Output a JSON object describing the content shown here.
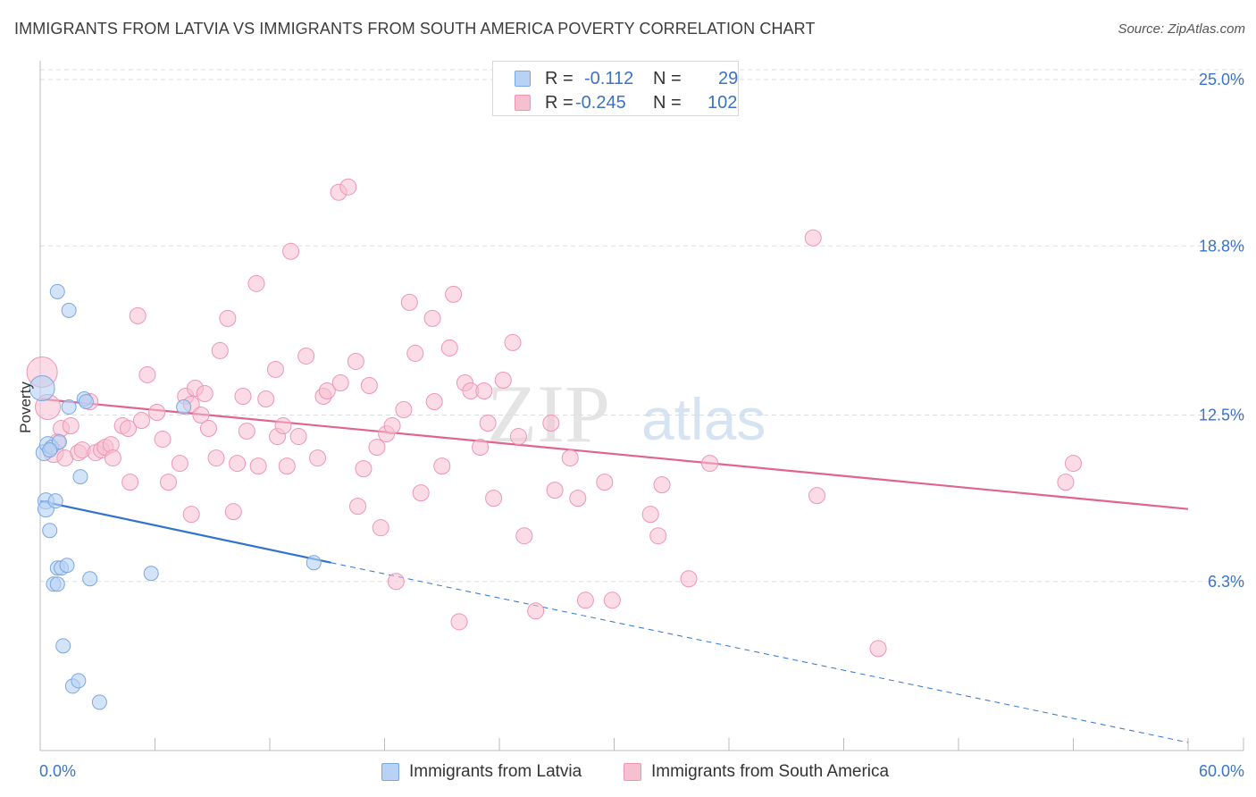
{
  "title": "IMMIGRANTS FROM LATVIA VS IMMIGRANTS FROM SOUTH AMERICA POVERTY CORRELATION CHART",
  "source": "Source: ZipAtlas.com",
  "watermark": {
    "zip": "ZIP",
    "atlas": "atlas"
  },
  "legend": {
    "rows": [
      {
        "r_label": "R =",
        "r_value": "-0.112",
        "n_label": "N =",
        "n_value": "29"
      },
      {
        "r_label": "R =",
        "r_value": "-0.245",
        "n_label": "N =",
        "n_value": "102"
      }
    ]
  },
  "bottom_legend": [
    "Immigrants from Latvia",
    "Immigrants from South America"
  ],
  "colors": {
    "latvia_fill": "#b8d2f3",
    "latvia_stroke": "#7aa7e0",
    "latvia_line": "#3072d0",
    "sa_fill": "#f7c0d1",
    "sa_stroke": "#ee95b3",
    "sa_line": "#e0648f",
    "grid": "#dddddd",
    "tick_label": "#3a73c8"
  },
  "chart_data": {
    "type": "scatter",
    "title": "IMMIGRANTS FROM LATVIA VS IMMIGRANTS FROM SOUTH AMERICA POVERTY CORRELATION CHART",
    "xlabel": "",
    "ylabel": "Poverty",
    "xlim": [
      0,
      60
    ],
    "ylim": [
      0,
      26.3
    ],
    "x_tick_labels": [
      "0.0%",
      "60.0%"
    ],
    "y_ticks": [
      6.3,
      12.5,
      18.8,
      25.0
    ],
    "y_tick_labels": [
      "6.3%",
      "12.5%",
      "18.8%",
      "25.0%"
    ],
    "grid": true,
    "series": [
      {
        "name": "Immigrants from Latvia",
        "r": -0.112,
        "n": 29,
        "trend": {
          "x0": 0,
          "y0": 9.3,
          "x1": 15.2,
          "y1": 7.0,
          "dashed_to_x": 60,
          "dashed_to_y": 0.3
        },
        "points": [
          {
            "x": 0.1,
            "y": 13.5,
            "s": 14
          },
          {
            "x": 0.2,
            "y": 11.1,
            "s": 9
          },
          {
            "x": 0.3,
            "y": 9.3,
            "s": 9
          },
          {
            "x": 0.3,
            "y": 9.0,
            "s": 9
          },
          {
            "x": 0.4,
            "y": 11.4,
            "s": 9
          },
          {
            "x": 0.5,
            "y": 8.2,
            "s": 8
          },
          {
            "x": 0.6,
            "y": 11.3,
            "s": 8
          },
          {
            "x": 0.8,
            "y": 9.3,
            "s": 8
          },
          {
            "x": 0.7,
            "y": 6.2,
            "s": 8
          },
          {
            "x": 0.9,
            "y": 6.8,
            "s": 8
          },
          {
            "x": 0.9,
            "y": 17.1,
            "s": 8
          },
          {
            "x": 0.9,
            "y": 6.2,
            "s": 8
          },
          {
            "x": 1.0,
            "y": 11.5,
            "s": 8
          },
          {
            "x": 1.1,
            "y": 6.8,
            "s": 8
          },
          {
            "x": 1.2,
            "y": 3.9,
            "s": 8
          },
          {
            "x": 1.4,
            "y": 6.9,
            "s": 8
          },
          {
            "x": 1.5,
            "y": 12.8,
            "s": 8
          },
          {
            "x": 1.5,
            "y": 16.4,
            "s": 8
          },
          {
            "x": 1.7,
            "y": 2.4,
            "s": 8
          },
          {
            "x": 2.0,
            "y": 2.6,
            "s": 8
          },
          {
            "x": 2.1,
            "y": 10.2,
            "s": 8
          },
          {
            "x": 2.3,
            "y": 13.1,
            "s": 8
          },
          {
            "x": 2.4,
            "y": 13.0,
            "s": 8
          },
          {
            "x": 2.6,
            "y": 6.4,
            "s": 8
          },
          {
            "x": 3.1,
            "y": 1.8,
            "s": 8
          },
          {
            "x": 5.8,
            "y": 6.6,
            "s": 8
          },
          {
            "x": 7.5,
            "y": 12.8,
            "s": 8
          },
          {
            "x": 14.3,
            "y": 7.0,
            "s": 8
          },
          {
            "x": 0.5,
            "y": 11.2,
            "s": 8
          }
        ]
      },
      {
        "name": "Immigrants from South America",
        "r": -0.245,
        "n": 102,
        "trend": {
          "x0": 0,
          "y0": 13.1,
          "x1": 60,
          "y1": 9.0
        },
        "points": [
          {
            "x": 0.1,
            "y": 14.1,
            "s": 17
          },
          {
            "x": 0.4,
            "y": 12.8,
            "s": 14
          },
          {
            "x": 0.7,
            "y": 11.1,
            "s": 11
          },
          {
            "x": 0.9,
            "y": 11.5,
            "s": 9
          },
          {
            "x": 1.1,
            "y": 12.0,
            "s": 9
          },
          {
            "x": 1.3,
            "y": 10.9,
            "s": 9
          },
          {
            "x": 1.6,
            "y": 12.1,
            "s": 9
          },
          {
            "x": 2.0,
            "y": 11.1,
            "s": 9
          },
          {
            "x": 2.2,
            "y": 11.2,
            "s": 9
          },
          {
            "x": 2.6,
            "y": 13.0,
            "s": 9
          },
          {
            "x": 2.9,
            "y": 11.1,
            "s": 9
          },
          {
            "x": 3.2,
            "y": 11.2,
            "s": 9
          },
          {
            "x": 3.4,
            "y": 11.3,
            "s": 9
          },
          {
            "x": 3.7,
            "y": 11.4,
            "s": 9
          },
          {
            "x": 3.8,
            "y": 10.9,
            "s": 9
          },
          {
            "x": 4.3,
            "y": 12.1,
            "s": 9
          },
          {
            "x": 4.6,
            "y": 12.0,
            "s": 9
          },
          {
            "x": 4.7,
            "y": 10.0,
            "s": 9
          },
          {
            "x": 5.1,
            "y": 16.2,
            "s": 9
          },
          {
            "x": 5.3,
            "y": 12.3,
            "s": 9
          },
          {
            "x": 5.6,
            "y": 14.0,
            "s": 9
          },
          {
            "x": 6.1,
            "y": 12.6,
            "s": 9
          },
          {
            "x": 6.4,
            "y": 11.6,
            "s": 9
          },
          {
            "x": 6.7,
            "y": 10.0,
            "s": 9
          },
          {
            "x": 7.3,
            "y": 10.7,
            "s": 9
          },
          {
            "x": 7.6,
            "y": 13.2,
            "s": 9
          },
          {
            "x": 7.9,
            "y": 8.8,
            "s": 9
          },
          {
            "x": 7.9,
            "y": 12.9,
            "s": 9
          },
          {
            "x": 8.1,
            "y": 13.5,
            "s": 9
          },
          {
            "x": 8.4,
            "y": 12.5,
            "s": 9
          },
          {
            "x": 8.6,
            "y": 13.3,
            "s": 9
          },
          {
            "x": 8.8,
            "y": 12.0,
            "s": 9
          },
          {
            "x": 9.2,
            "y": 10.9,
            "s": 9
          },
          {
            "x": 9.4,
            "y": 14.9,
            "s": 9
          },
          {
            "x": 9.8,
            "y": 16.1,
            "s": 9
          },
          {
            "x": 10.1,
            "y": 8.9,
            "s": 9
          },
          {
            "x": 10.3,
            "y": 10.7,
            "s": 9
          },
          {
            "x": 10.6,
            "y": 13.2,
            "s": 9
          },
          {
            "x": 10.8,
            "y": 11.9,
            "s": 9
          },
          {
            "x": 11.3,
            "y": 17.4,
            "s": 9
          },
          {
            "x": 11.4,
            "y": 10.6,
            "s": 9
          },
          {
            "x": 11.8,
            "y": 13.1,
            "s": 9
          },
          {
            "x": 12.3,
            "y": 14.2,
            "s": 9
          },
          {
            "x": 12.4,
            "y": 11.7,
            "s": 9
          },
          {
            "x": 12.7,
            "y": 12.1,
            "s": 9
          },
          {
            "x": 12.9,
            "y": 10.6,
            "s": 9
          },
          {
            "x": 13.1,
            "y": 18.6,
            "s": 9
          },
          {
            "x": 13.5,
            "y": 11.7,
            "s": 9
          },
          {
            "x": 13.9,
            "y": 14.7,
            "s": 9
          },
          {
            "x": 14.5,
            "y": 10.9,
            "s": 9
          },
          {
            "x": 14.8,
            "y": 13.2,
            "s": 9
          },
          {
            "x": 15.0,
            "y": 13.4,
            "s": 9
          },
          {
            "x": 15.6,
            "y": 20.8,
            "s": 9
          },
          {
            "x": 15.7,
            "y": 13.7,
            "s": 9
          },
          {
            "x": 16.1,
            "y": 21.0,
            "s": 9
          },
          {
            "x": 16.5,
            "y": 14.5,
            "s": 9
          },
          {
            "x": 16.6,
            "y": 9.1,
            "s": 9
          },
          {
            "x": 16.9,
            "y": 10.5,
            "s": 9
          },
          {
            "x": 17.2,
            "y": 13.6,
            "s": 9
          },
          {
            "x": 17.6,
            "y": 11.3,
            "s": 9
          },
          {
            "x": 17.8,
            "y": 8.3,
            "s": 9
          },
          {
            "x": 18.1,
            "y": 11.8,
            "s": 9
          },
          {
            "x": 18.4,
            "y": 12.1,
            "s": 9
          },
          {
            "x": 18.6,
            "y": 6.3,
            "s": 9
          },
          {
            "x": 19.0,
            "y": 12.7,
            "s": 9
          },
          {
            "x": 19.3,
            "y": 16.7,
            "s": 9
          },
          {
            "x": 19.6,
            "y": 14.8,
            "s": 9
          },
          {
            "x": 19.9,
            "y": 9.6,
            "s": 9
          },
          {
            "x": 20.5,
            "y": 16.1,
            "s": 9
          },
          {
            "x": 20.6,
            "y": 13.0,
            "s": 9
          },
          {
            "x": 21.0,
            "y": 10.6,
            "s": 9
          },
          {
            "x": 21.4,
            "y": 15.0,
            "s": 9
          },
          {
            "x": 21.6,
            "y": 17.0,
            "s": 9
          },
          {
            "x": 21.9,
            "y": 4.8,
            "s": 9
          },
          {
            "x": 22.2,
            "y": 13.7,
            "s": 9
          },
          {
            "x": 22.5,
            "y": 13.4,
            "s": 9
          },
          {
            "x": 23.0,
            "y": 11.3,
            "s": 9
          },
          {
            "x": 23.2,
            "y": 13.4,
            "s": 9
          },
          {
            "x": 23.4,
            "y": 12.2,
            "s": 9
          },
          {
            "x": 23.7,
            "y": 9.4,
            "s": 9
          },
          {
            "x": 24.2,
            "y": 13.8,
            "s": 9
          },
          {
            "x": 24.7,
            "y": 15.2,
            "s": 9
          },
          {
            "x": 25.0,
            "y": 11.7,
            "s": 9
          },
          {
            "x": 25.3,
            "y": 8.0,
            "s": 9
          },
          {
            "x": 25.9,
            "y": 5.2,
            "s": 9
          },
          {
            "x": 26.7,
            "y": 12.2,
            "s": 9
          },
          {
            "x": 26.9,
            "y": 9.7,
            "s": 9
          },
          {
            "x": 27.7,
            "y": 10.9,
            "s": 9
          },
          {
            "x": 28.1,
            "y": 9.4,
            "s": 9
          },
          {
            "x": 28.5,
            "y": 5.6,
            "s": 9
          },
          {
            "x": 29.5,
            "y": 10.0,
            "s": 9
          },
          {
            "x": 29.9,
            "y": 5.6,
            "s": 9
          },
          {
            "x": 31.9,
            "y": 8.8,
            "s": 9
          },
          {
            "x": 32.3,
            "y": 8.0,
            "s": 9
          },
          {
            "x": 32.5,
            "y": 9.9,
            "s": 9
          },
          {
            "x": 33.9,
            "y": 6.4,
            "s": 9
          },
          {
            "x": 35.0,
            "y": 10.7,
            "s": 9
          },
          {
            "x": 40.4,
            "y": 19.1,
            "s": 9
          },
          {
            "x": 40.6,
            "y": 9.5,
            "s": 9
          },
          {
            "x": 43.8,
            "y": 3.8,
            "s": 9
          },
          {
            "x": 53.6,
            "y": 10.0,
            "s": 9
          },
          {
            "x": 54.0,
            "y": 10.7,
            "s": 9
          }
        ]
      }
    ]
  }
}
